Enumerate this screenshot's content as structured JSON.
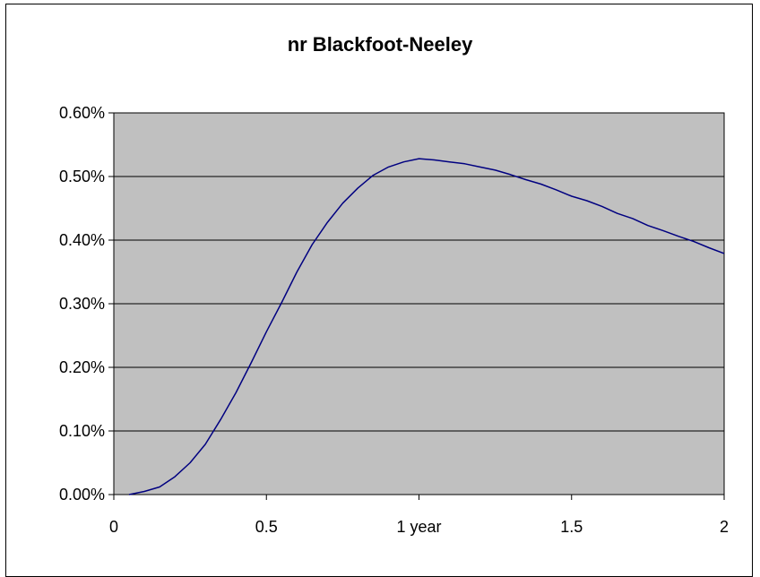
{
  "chart_data": {
    "type": "line",
    "title": "nr Blackfoot-Neeley",
    "xlabel": "",
    "ylabel": "",
    "xlim": [
      0,
      2
    ],
    "ylim": [
      0,
      0.006
    ],
    "grid": true,
    "legend": "none",
    "x_ticks": [
      {
        "value": 0,
        "label": "0"
      },
      {
        "value": 0.5,
        "label": "0.5"
      },
      {
        "value": 1,
        "label": "1 year"
      },
      {
        "value": 1.5,
        "label": "1.5"
      },
      {
        "value": 2,
        "label": "2"
      }
    ],
    "y_ticks": [
      {
        "value": 0,
        "label": "0.00%"
      },
      {
        "value": 0.001,
        "label": "0.10%"
      },
      {
        "value": 0.002,
        "label": "0.20%"
      },
      {
        "value": 0.003,
        "label": "0.30%"
      },
      {
        "value": 0.004,
        "label": "0.40%"
      },
      {
        "value": 0.005,
        "label": "0.50%"
      },
      {
        "value": 0.006,
        "label": "0.60%"
      }
    ],
    "series": [
      {
        "color": "#000080",
        "x": [
          0.05,
          0.1,
          0.15,
          0.2,
          0.25,
          0.3,
          0.35,
          0.4,
          0.45,
          0.5,
          0.55,
          0.6,
          0.65,
          0.7,
          0.75,
          0.8,
          0.85,
          0.9,
          0.95,
          1.0,
          1.05,
          1.1,
          1.15,
          1.2,
          1.25,
          1.3,
          1.35,
          1.4,
          1.45,
          1.5,
          1.55,
          1.6,
          1.65,
          1.7,
          1.75,
          1.8,
          1.85,
          1.9,
          1.95,
          2.0
        ],
        "y": [
          0.0,
          5e-05,
          0.00012,
          0.00028,
          0.0005,
          0.00079,
          0.00118,
          0.0016,
          0.00207,
          0.00256,
          0.00302,
          0.0035,
          0.00393,
          0.00428,
          0.00458,
          0.00482,
          0.00502,
          0.00515,
          0.00523,
          0.00528,
          0.00526,
          0.00523,
          0.0052,
          0.00515,
          0.0051,
          0.00503,
          0.00495,
          0.00488,
          0.00479,
          0.00469,
          0.00462,
          0.00453,
          0.00442,
          0.00434,
          0.00423,
          0.00415,
          0.00406,
          0.00398,
          0.00388,
          0.00379
        ]
      }
    ],
    "colors": {
      "plot_background": "#c0c0c0",
      "gridline": "#000000",
      "axis": "#000000"
    }
  }
}
